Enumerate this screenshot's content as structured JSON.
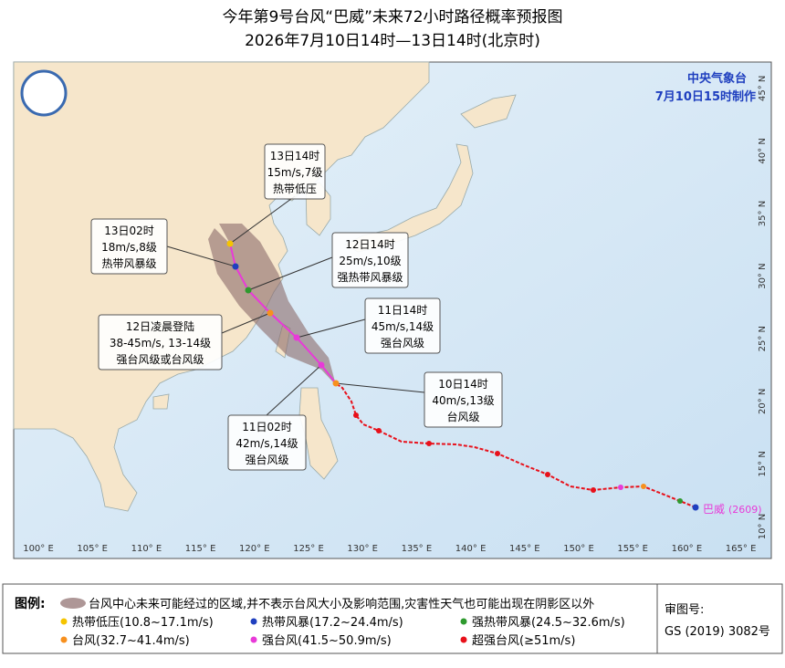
{
  "header": {
    "title": "今年第9号台风“巴威”未来72小时路径概率预报图",
    "subtitle": "2026年7月10日14时—13日14时(北京时)"
  },
  "agency": {
    "name": "中央气象台",
    "made": "7月10日15时制作"
  },
  "map": {
    "longitude_labels": [
      "100° E",
      "105° E",
      "110° E",
      "115° E",
      "120° E",
      "125° E",
      "130° E",
      "135° E",
      "140° E",
      "145° E",
      "150° E",
      "155° E",
      "160° E",
      "165° E"
    ],
    "latitude_labels": [
      "10° N",
      "15° N",
      "20° N",
      "25° N",
      "30° N",
      "35° N",
      "40° N",
      "45° N"
    ],
    "typhoon_name": "巴威",
    "typhoon_code": "(2609)",
    "callouts": [
      {
        "lines": [
          "13日14时",
          "15m/s,7级",
          "热带低压"
        ]
      },
      {
        "lines": [
          "13日02时",
          "18m/s,8级",
          "热带风暴级"
        ]
      },
      {
        "lines": [
          "12日14时",
          "25m/s,10级",
          "强热带风暴级"
        ]
      },
      {
        "lines": [
          "11日14时",
          "45m/s,14级",
          "强台风级"
        ]
      },
      {
        "lines": [
          "12日凌晨登陆",
          "38-45m/s,  13-14级",
          "强台风级或台风级"
        ]
      },
      {
        "lines": [
          "10日14时",
          "40m/s,13级",
          "台风级"
        ]
      },
      {
        "lines": [
          "11日02时",
          "42m/s,14级",
          "强台风级"
        ]
      }
    ]
  },
  "legend": {
    "title": "图例:",
    "cone": "台风中心未来可能经过的区域,并不表示台风大小及影响范围,灾害性天气也可能出现在阴影区以外",
    "items": [
      {
        "label": "热带低压(10.8~17.1m/s)",
        "color": "#f5c400"
      },
      {
        "label": "热带风暴(17.2~24.4m/s)",
        "color": "#1f3fbf"
      },
      {
        "label": "强热带风暴(24.5~32.6m/s)",
        "color": "#2e9a2e"
      },
      {
        "label": "台风(32.7~41.4m/s)",
        "color": "#f7901e"
      },
      {
        "label": "强台风(41.5~50.9m/s)",
        "color": "#e83ad8"
      },
      {
        "label": "超强台风(≥51m/s)",
        "color": "#e8101a"
      }
    ]
  },
  "approval": {
    "label": "审图号:",
    "number": "GS (2019) 3082号"
  }
}
